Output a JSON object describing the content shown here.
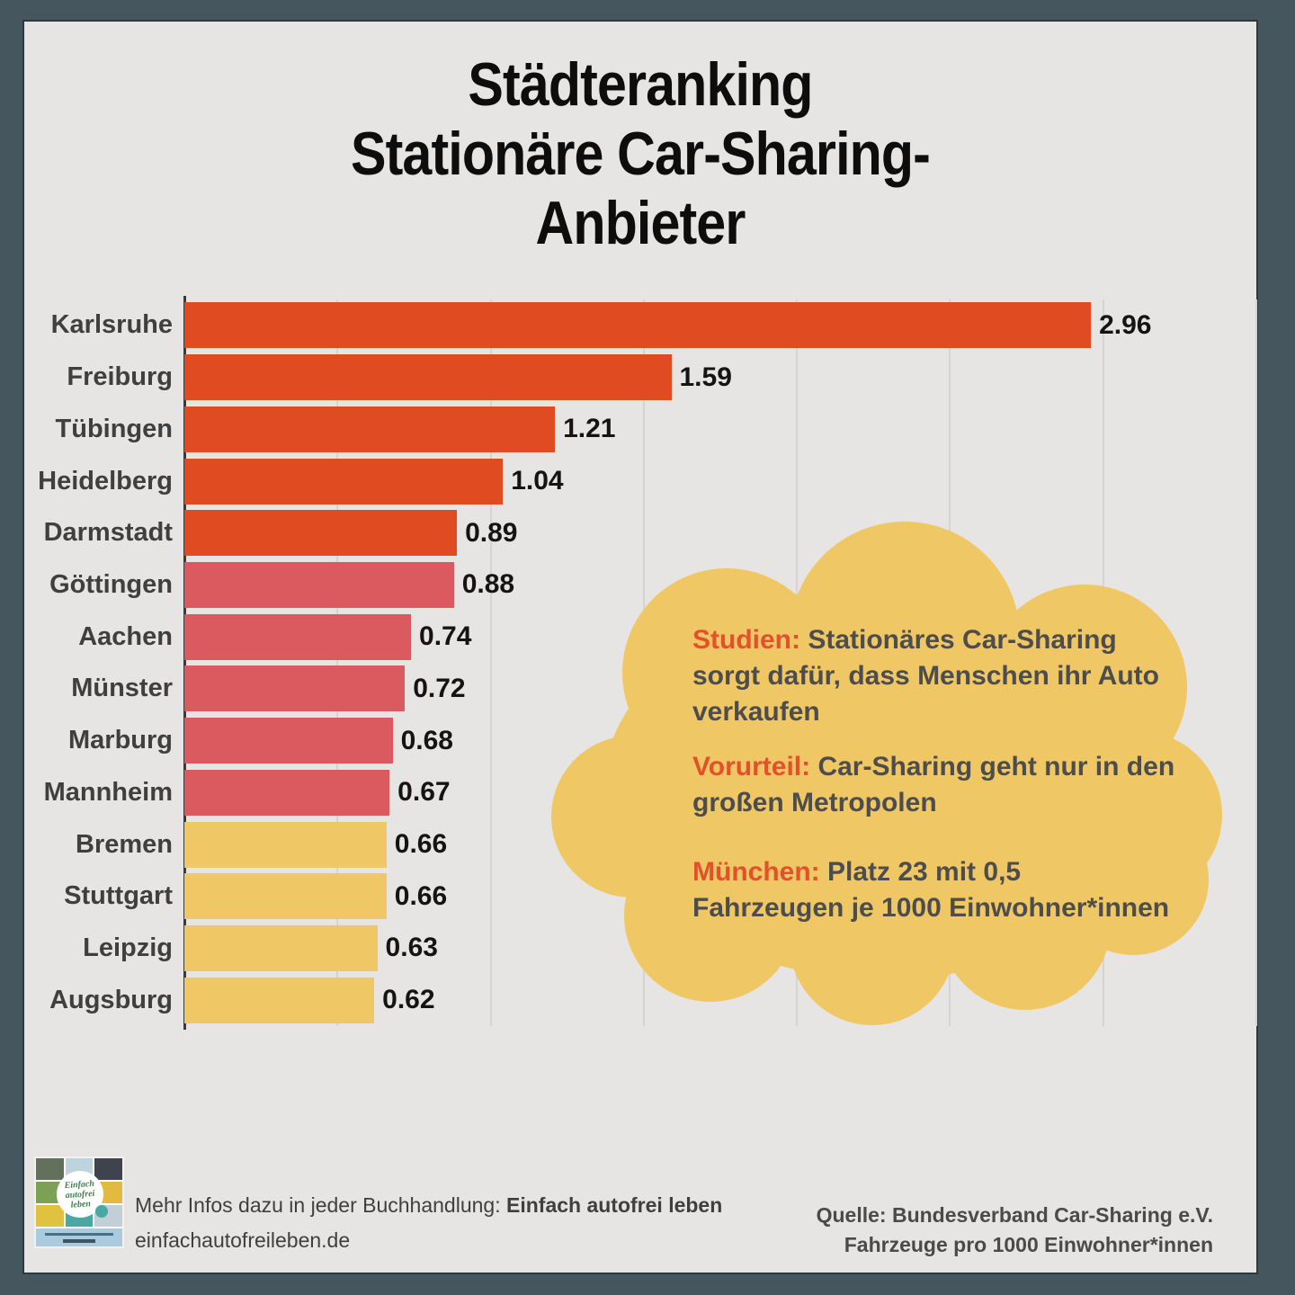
{
  "title": {
    "line1": "Städteranking",
    "line2": "Stationäre Car-Sharing-",
    "line3": "Anbieter"
  },
  "chart_data": {
    "type": "bar",
    "orientation": "horizontal",
    "title": "Städteranking Stationäre Car-Sharing-Anbieter",
    "categories": [
      "Karlsruhe",
      "Freiburg",
      "Tübingen",
      "Heidelberg",
      "Darmstadt",
      "Göttingen",
      "Aachen",
      "Münster",
      "Marburg",
      "Mannheim",
      "Bremen",
      "Stuttgart",
      "Leipzig",
      "Augsburg"
    ],
    "values": [
      2.96,
      1.59,
      1.21,
      1.04,
      0.89,
      0.88,
      0.74,
      0.72,
      0.68,
      0.67,
      0.66,
      0.66,
      0.63,
      0.62
    ],
    "value_labels": [
      "2.96",
      "1.59",
      "1.21",
      "1.04",
      "0.89",
      "0.88",
      "0.74",
      "0.72",
      "0.68",
      "0.67",
      "0.66",
      "0.66",
      "0.63",
      "0.62"
    ],
    "bar_colors": [
      "#E04B21",
      "#E04B21",
      "#E04B21",
      "#E04B21",
      "#E04B21",
      "#DB5A5F",
      "#DB5A5F",
      "#DB5A5F",
      "#DB5A5F",
      "#DB5A5F",
      "#EFC765",
      "#EFC765",
      "#EFC765",
      "#EFC765"
    ],
    "xlabel": "",
    "ylabel": "",
    "unit": "Fahrzeuge pro 1000 Einwohner*innen",
    "xlim": [
      0,
      3.5
    ],
    "gridline_step": 0.5,
    "grid": true,
    "legend": false
  },
  "cloud": {
    "paragraphs": [
      {
        "label": "Studien:",
        "text": " Stationäres Car-Sharing\nsorgt dafür, dass Menschen ihr Auto\nverkaufen"
      },
      {
        "label": "Vorurteil:",
        "text": " Car-Sharing geht nur in den\ngroßen Metropolen"
      },
      {
        "label": "München:",
        "text": " Platz 23 mit 0,5\nFahrzeugen je 1000 Einwohner*innen"
      }
    ]
  },
  "footer": {
    "info_prefix": "Mehr Infos dazu in jeder Buchhandlung: ",
    "info_bold": "Einfach autofrei leben",
    "website": "einfachautofreileben.de",
    "source_line1": "Quelle: Bundesverband Car-Sharing e.V.",
    "source_line2": "Fahrzeuge pro 1000 Einwohner*innen",
    "book_cover_title": "Einfach autofrei leben"
  },
  "colors": {
    "frame": "#45565F",
    "canvas_background": "#E7E5E3",
    "bar_orange": "#E04B21",
    "bar_salmon": "#DB5A5F",
    "bar_yellow": "#EFC765",
    "cloud_fill": "#EFC765",
    "accent_orange": "#E2512B",
    "text_dark": "#3F3F3F",
    "cloud_text": "#4D4D4D",
    "gridline": "#D6D3D1",
    "axis": "#3A3A3A"
  }
}
